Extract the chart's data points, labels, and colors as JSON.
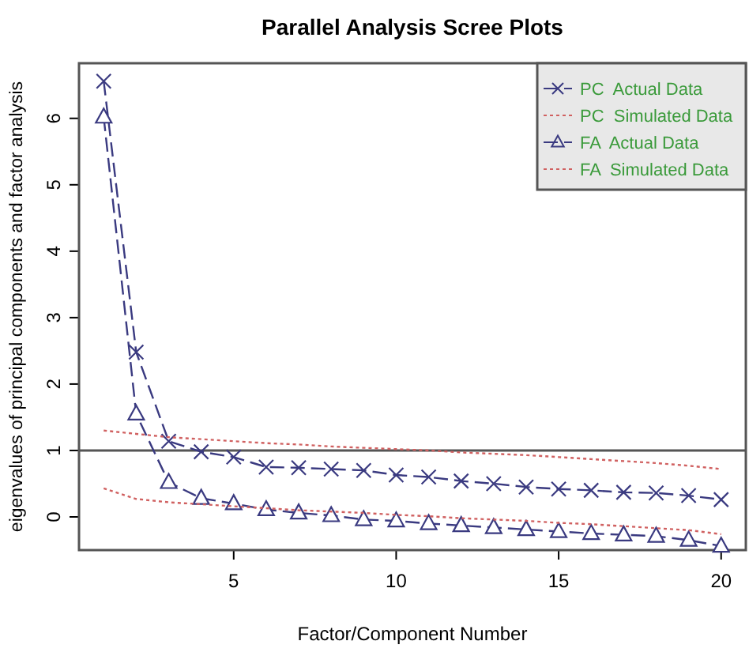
{
  "chart_data": {
    "type": "line",
    "title": "Parallel Analysis Scree Plots",
    "xlabel": "Factor/Component Number",
    "ylabel": "eigenvalues of principal components and factor analysis",
    "x": [
      1,
      2,
      3,
      4,
      5,
      6,
      7,
      8,
      9,
      10,
      11,
      12,
      13,
      14,
      15,
      16,
      17,
      18,
      19,
      20
    ],
    "xlim": [
      0.24,
      20.76
    ],
    "xticks": [
      5,
      10,
      15,
      20
    ],
    "ylim": [
      -0.5,
      6.83
    ],
    "yticks": [
      0,
      1,
      2,
      3,
      4,
      5,
      6
    ],
    "grid": false,
    "legend": "top right",
    "series": [
      {
        "name": "PC  Actual Data",
        "color": "#3a3a80",
        "marker": "cross",
        "line_style": "dashed",
        "values": [
          6.56,
          2.48,
          1.14,
          0.98,
          0.9,
          0.75,
          0.74,
          0.72,
          0.7,
          0.63,
          0.6,
          0.54,
          0.5,
          0.45,
          0.42,
          0.4,
          0.37,
          0.36,
          0.32,
          0.26
        ]
      },
      {
        "name": "PC  Simulated Data",
        "color": "#d06060",
        "marker": "none",
        "line_style": "dotted",
        "values": [
          1.3,
          1.25,
          1.2,
          1.17,
          1.14,
          1.11,
          1.09,
          1.06,
          1.04,
          1.02,
          1.0,
          0.97,
          0.95,
          0.93,
          0.9,
          0.87,
          0.84,
          0.81,
          0.77,
          0.72
        ]
      },
      {
        "name": "FA  Actual Data",
        "color": "#3a3a80",
        "marker": "triangle",
        "line_style": "dashed",
        "values": [
          6.02,
          1.55,
          0.52,
          0.28,
          0.2,
          0.11,
          0.06,
          0.02,
          -0.04,
          -0.06,
          -0.1,
          -0.13,
          -0.16,
          -0.19,
          -0.22,
          -0.25,
          -0.27,
          -0.29,
          -0.35,
          -0.44
        ]
      },
      {
        "name": "FA  Simulated Data",
        "color": "#d06060",
        "marker": "none",
        "line_style": "dotted",
        "values": [
          0.43,
          0.27,
          0.22,
          0.19,
          0.16,
          0.13,
          0.1,
          0.08,
          0.06,
          0.03,
          0.01,
          -0.02,
          -0.04,
          -0.06,
          -0.09,
          -0.11,
          -0.14,
          -0.17,
          -0.2,
          -0.26
        ]
      }
    ],
    "ref_lines": [
      {
        "axis": "y",
        "value": 1,
        "color": "#555555",
        "line_style": "solid"
      }
    ]
  }
}
